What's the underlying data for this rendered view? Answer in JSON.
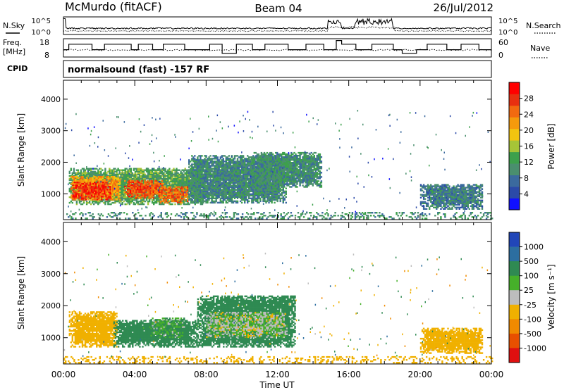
{
  "header": {
    "title": "McMurdo (fitACF)",
    "beam": "Beam 04",
    "date": "26/Jul/2012"
  },
  "noise_panel": {
    "left_label": "N.Sky",
    "right_label": "N.Search",
    "left_ticks": [
      "10^5",
      "10^0"
    ],
    "right_ticks": [
      "10^5",
      "10^0"
    ]
  },
  "freq_panel": {
    "left_label": "Freq.",
    "left_unit": "[MHz]",
    "right_label": "Nave",
    "left_ticks": [
      "18",
      "8"
    ],
    "right_ticks": [
      "60",
      "0"
    ],
    "freq_steps": [
      [
        0.0,
        12
      ],
      [
        0.3,
        15
      ],
      [
        1.6,
        12
      ],
      [
        2.3,
        15
      ],
      [
        3.8,
        12
      ],
      [
        4.2,
        15
      ],
      [
        5.0,
        12
      ],
      [
        5.6,
        15
      ],
      [
        6.8,
        12
      ],
      [
        8.2,
        15
      ],
      [
        8.9,
        10
      ],
      [
        9.7,
        15
      ],
      [
        10.6,
        12
      ],
      [
        11.3,
        15
      ],
      [
        12.6,
        12
      ],
      [
        13.6,
        15
      ],
      [
        14.6,
        12
      ],
      [
        15.3,
        17
      ],
      [
        15.6,
        15
      ],
      [
        16.4,
        12
      ],
      [
        17.3,
        15
      ],
      [
        18.5,
        12
      ],
      [
        19.0,
        10
      ],
      [
        19.8,
        12
      ],
      [
        20.4,
        15
      ],
      [
        21.5,
        12
      ],
      [
        22.3,
        15
      ],
      [
        23.3,
        12
      ],
      [
        24.0,
        12
      ]
    ]
  },
  "cpid": {
    "label": "CPID",
    "value": "normalsound (fast) -157 RF"
  },
  "chart_data": [
    {
      "type": "heatmap",
      "name": "power",
      "ylabel": "Slant Range [km]",
      "xlabel": "Time UT",
      "xlim": [
        0,
        24
      ],
      "ylim": [
        180,
        4600
      ],
      "x_ticks": [
        "00:00",
        "04:00",
        "08:00",
        "12:00",
        "16:00",
        "20:00",
        "00:00"
      ],
      "y_ticks": [
        1000,
        2000,
        3000,
        4000
      ],
      "colorbar": {
        "label": "Power [dB]",
        "ticks": [
          "28",
          "24",
          "20",
          "16",
          "12",
          "8",
          "4"
        ],
        "range": [
          0,
          32
        ],
        "colors": [
          "#1010ff",
          "#2b4aa8",
          "#3b6a9e",
          "#4a8f6e",
          "#3da04c",
          "#a6c437",
          "#f2c410",
          "#f59a0c",
          "#f26a10",
          "#e83010",
          "#ff0000"
        ]
      },
      "regions": [
        {
          "t0": 0.3,
          "t1": 7.8,
          "r0": 650,
          "r1": 1800,
          "value": 12
        },
        {
          "t0": 0.4,
          "t1": 3.2,
          "r0": 800,
          "r1": 1550,
          "value": 22
        },
        {
          "t0": 0.5,
          "t1": 2.6,
          "r0": 800,
          "r1": 1350,
          "value": 29
        },
        {
          "t0": 3.4,
          "t1": 5.6,
          "r0": 850,
          "r1": 1400,
          "value": 27
        },
        {
          "t0": 5.4,
          "t1": 7.0,
          "r0": 700,
          "r1": 1200,
          "value": 26
        },
        {
          "t0": 7.0,
          "t1": 12.5,
          "r0": 700,
          "r1": 2200,
          "value": 9
        },
        {
          "t0": 10.5,
          "t1": 14.5,
          "r0": 1200,
          "r1": 2300,
          "value": 10
        },
        {
          "t0": 20.0,
          "t1": 23.5,
          "r0": 500,
          "r1": 1300,
          "value": 8
        },
        {
          "t0": 0.0,
          "t1": 24.0,
          "r0": 200,
          "r1": 400,
          "value": 10
        }
      ]
    },
    {
      "type": "heatmap",
      "name": "velocity",
      "ylabel": "Slant Range [km]",
      "xlabel": "Time UT",
      "xlim": [
        0,
        24
      ],
      "ylim": [
        180,
        4600
      ],
      "x_ticks": [
        "00:00",
        "04:00",
        "08:00",
        "12:00",
        "16:00",
        "20:00",
        "00:00"
      ],
      "y_ticks": [
        1000,
        2000,
        3000,
        4000
      ],
      "colorbar": {
        "label": "Velocity [m s⁻¹]",
        "ticks": [
          "1000",
          "500",
          "100",
          "25",
          "-25",
          "-100",
          "-500",
          "-1000"
        ],
        "colors": [
          "#2146b8",
          "#2c6ea0",
          "#2f8a52",
          "#46b02a",
          "#bdbdbd",
          "#f0b000",
          "#f08a00",
          "#e85000",
          "#e01010"
        ]
      },
      "regions": [
        {
          "t0": 0.3,
          "t1": 3.0,
          "r0": 700,
          "r1": 1800,
          "value": -150
        },
        {
          "t0": 2.8,
          "t1": 7.5,
          "r0": 700,
          "r1": 1550,
          "value": 200
        },
        {
          "t0": 4.8,
          "t1": 6.8,
          "r0": 1000,
          "r1": 1600,
          "value": 60
        },
        {
          "t0": 7.5,
          "t1": 13.0,
          "r0": 700,
          "r1": 2300,
          "value": 200
        },
        {
          "t0": 8.0,
          "t1": 12.5,
          "r0": 1000,
          "r1": 1800,
          "value": 0
        },
        {
          "t0": 20.0,
          "t1": 23.5,
          "r0": 500,
          "r1": 1300,
          "value": -150
        },
        {
          "t0": 0.0,
          "t1": 24.0,
          "r0": 200,
          "r1": 400,
          "value": -200
        }
      ]
    }
  ]
}
